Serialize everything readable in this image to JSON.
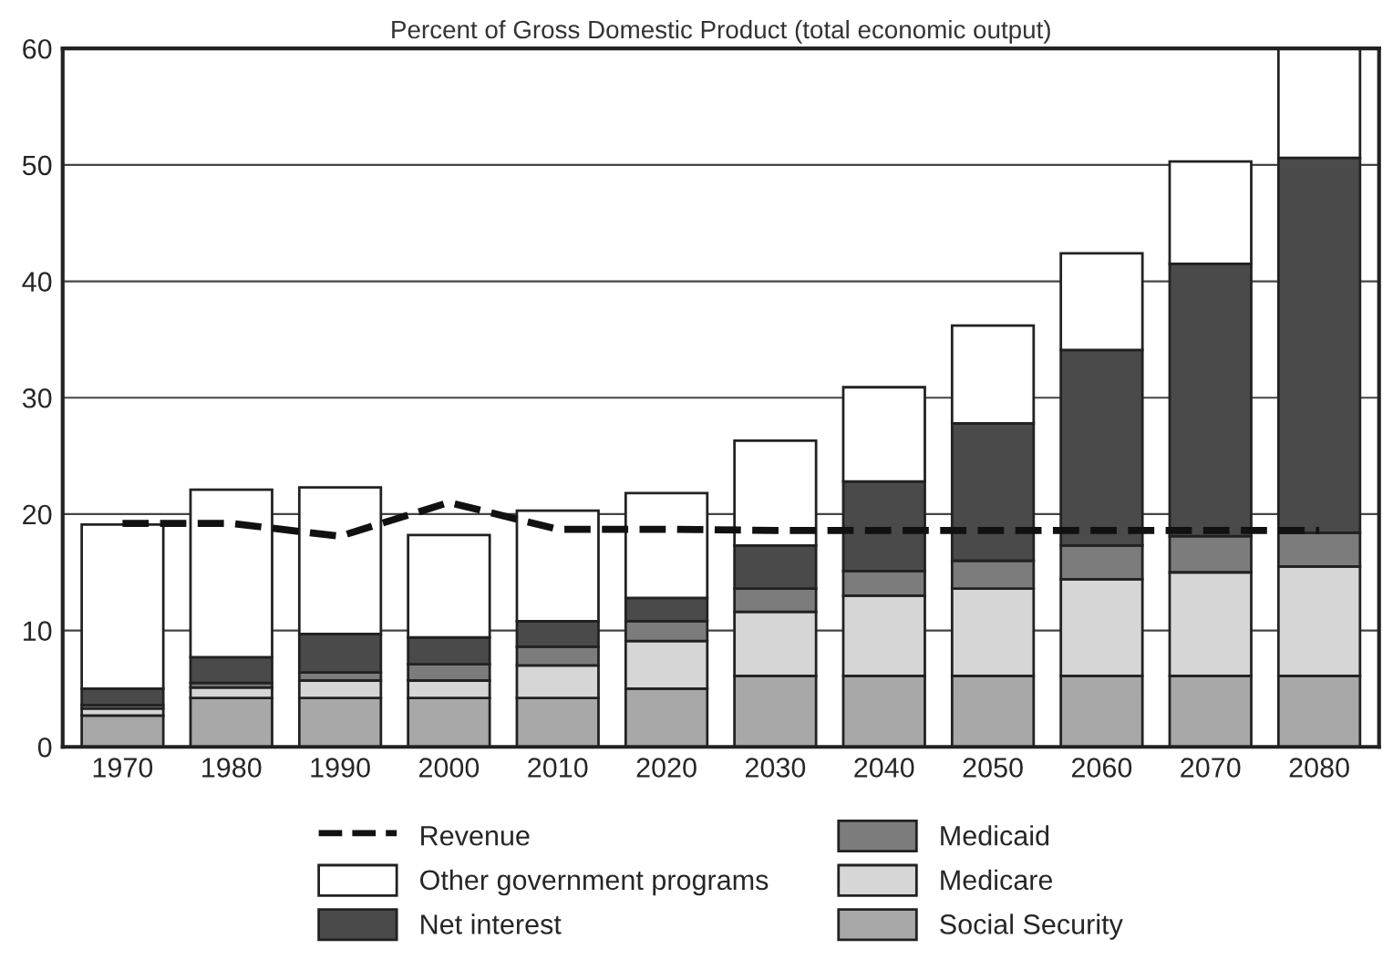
{
  "chart_data": {
    "type": "bar",
    "stacked": true,
    "title": "Percent of Gross Domestic Product (total economic output)",
    "categories": [
      "1970",
      "1980",
      "1990",
      "2000",
      "2010",
      "2020",
      "2030",
      "2040",
      "2050",
      "2060",
      "2070",
      "2080"
    ],
    "series": [
      {
        "name": "Social Security",
        "color": "#a8a8a8",
        "values": [
          2.7,
          4.2,
          4.2,
          4.2,
          4.2,
          5.0,
          6.1,
          6.1,
          6.1,
          6.1,
          6.1,
          6.1
        ]
      },
      {
        "name": "Medicare",
        "color": "#d6d6d6",
        "values": [
          0.6,
          0.9,
          1.5,
          1.5,
          2.8,
          4.1,
          5.5,
          6.9,
          7.5,
          8.3,
          8.9,
          9.4
        ]
      },
      {
        "name": "Medicaid",
        "color": "#7c7c7c",
        "values": [
          0.3,
          0.4,
          0.7,
          1.4,
          1.6,
          1.7,
          2.0,
          2.1,
          2.4,
          2.9,
          3.1,
          2.9
        ]
      },
      {
        "name": "Net interest",
        "color": "#4a4a4a",
        "values": [
          1.4,
          2.2,
          3.3,
          2.3,
          2.2,
          2.0,
          3.7,
          7.7,
          11.8,
          16.8,
          23.4,
          32.2
        ]
      },
      {
        "name": "Other government programs",
        "color": "#ffffff",
        "values": [
          14.1,
          14.4,
          12.6,
          8.8,
          9.5,
          9.0,
          9.0,
          8.1,
          8.4,
          8.3,
          8.8,
          9.4
        ]
      },
      {
        "name": "Revenue",
        "type": "line",
        "line_style": "dashed",
        "color": "#111111",
        "values": [
          19.2,
          19.2,
          18.1,
          21.0,
          18.7,
          18.7,
          18.6,
          18.6,
          18.6,
          18.6,
          18.6,
          18.6
        ]
      }
    ],
    "ylim": [
      0,
      60
    ],
    "yticks": [
      0,
      10,
      20,
      30,
      40,
      50,
      60
    ],
    "grid": "y",
    "legend": "bottom"
  }
}
